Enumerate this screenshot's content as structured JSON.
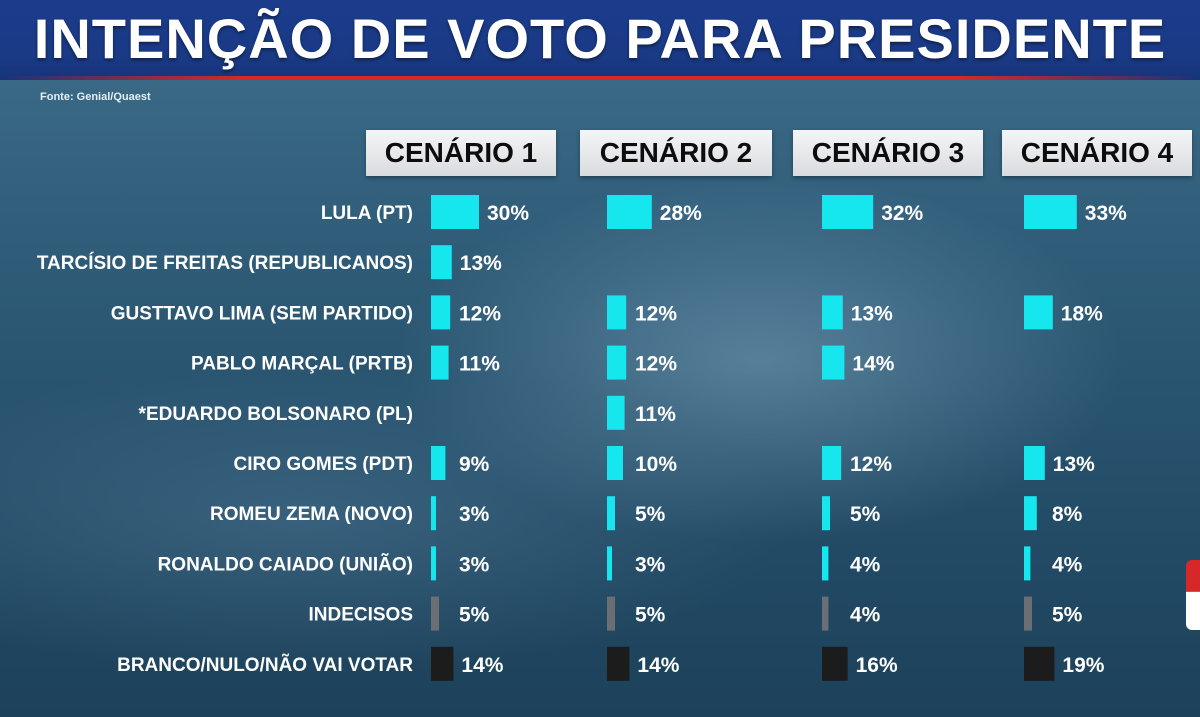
{
  "header": {
    "title": "INTENÇÃO DE VOTO PARA PRESIDENTE",
    "source": "Fonte: Genial/Quaest"
  },
  "colors": {
    "title_band": "#1a3a86",
    "accent_red": "#d62828",
    "candidate_bar": "#16e6ee",
    "undecided_bar": "#6b6f73",
    "blank_null_bar": "#1c1c1c"
  },
  "chart_data": {
    "type": "bar",
    "orientation": "horizontal",
    "unit": "%",
    "scenarios": [
      "CENÁRIO 1",
      "CENÁRIO 2",
      "CENÁRIO 3",
      "CENÁRIO 4"
    ],
    "categories": [
      "LULA (PT)",
      "TARCÍSIO DE FREITAS (REPUBLICANOS)",
      "GUSTTAVO LIMA (SEM PARTIDO)",
      "PABLO MARÇAL  (PRTB)",
      "*EDUARDO BOLSONARO (PL)",
      "CIRO GOMES (PDT)",
      "ROMEU ZEMA (NOVO)",
      "RONALDO CAIADO (UNIÃO)",
      "INDECISOS",
      "BRANCO/NULO/NÃO VAI VOTAR"
    ],
    "category_kind": [
      "candidate",
      "candidate",
      "candidate",
      "candidate",
      "candidate",
      "candidate",
      "candidate",
      "candidate",
      "undecided",
      "blank_null"
    ],
    "series": [
      {
        "name": "CENÁRIO 1",
        "values": [
          30,
          13,
          12,
          11,
          null,
          9,
          3,
          3,
          5,
          14
        ]
      },
      {
        "name": "CENÁRIO 2",
        "values": [
          28,
          null,
          12,
          12,
          11,
          10,
          5,
          3,
          5,
          14
        ]
      },
      {
        "name": "CENÁRIO 3",
        "values": [
          32,
          null,
          13,
          14,
          null,
          12,
          5,
          4,
          4,
          16
        ]
      },
      {
        "name": "CENÁRIO 4",
        "values": [
          33,
          null,
          18,
          null,
          null,
          13,
          8,
          4,
          5,
          19
        ]
      }
    ]
  }
}
